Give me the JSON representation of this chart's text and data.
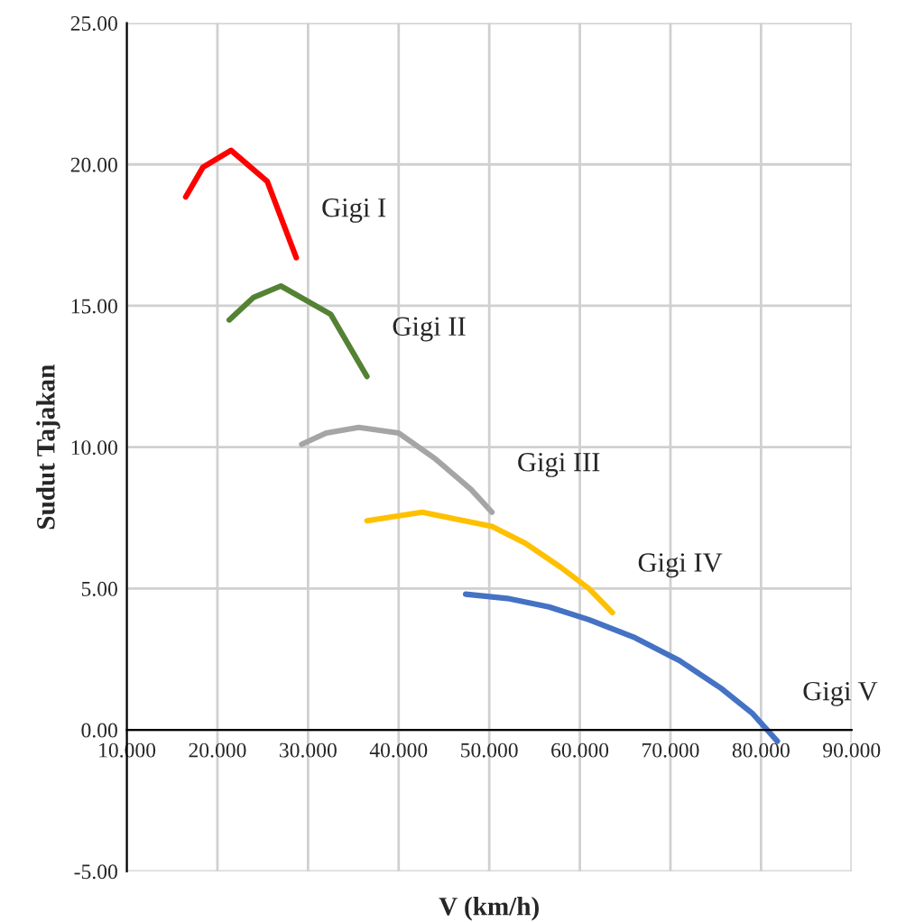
{
  "chart_data": {
    "type": "line",
    "xlabel": "V (km/h)",
    "ylabel": "Sudut Tajakan",
    "xlim": [
      10,
      90
    ],
    "ylim": [
      -5,
      25
    ],
    "xticks": [
      {
        "value": 10,
        "label": "10.000"
      },
      {
        "value": 20,
        "label": "20.000"
      },
      {
        "value": 30,
        "label": "30.000"
      },
      {
        "value": 40,
        "label": "40.000"
      },
      {
        "value": 50,
        "label": "50.000"
      },
      {
        "value": 60,
        "label": "60.000"
      },
      {
        "value": 70,
        "label": "70.000"
      },
      {
        "value": 80,
        "label": "80.000"
      },
      {
        "value": 90,
        "label": "90.000"
      }
    ],
    "yticks": [
      {
        "value": -5,
        "label": "-5.00"
      },
      {
        "value": 0,
        "label": "0.00"
      },
      {
        "value": 5,
        "label": "5.00"
      },
      {
        "value": 10,
        "label": "10.00"
      },
      {
        "value": 15,
        "label": "15.00"
      },
      {
        "value": 20,
        "label": "20.00"
      },
      {
        "value": 25,
        "label": "25.00"
      }
    ],
    "grid": true,
    "marker": "none",
    "line_style": "solid",
    "series": [
      {
        "name": "Gigi I",
        "color": "#ff0000",
        "x": [
          16.5,
          18.4,
          21.5,
          25.5,
          28.7
        ],
        "values": [
          18.85,
          19.9,
          20.5,
          19.4,
          16.7
        ]
      },
      {
        "name": "Gigi II",
        "color": "#548235",
        "x": [
          21.3,
          24.0,
          27.0,
          32.5,
          36.5
        ],
        "values": [
          14.5,
          15.3,
          15.7,
          14.7,
          12.5
        ]
      },
      {
        "name": "Gigi III",
        "color": "#a5a5a5",
        "x": [
          29.3,
          32.0,
          35.6,
          40.0,
          44.0,
          48.0,
          50.3
        ],
        "values": [
          10.1,
          10.5,
          10.7,
          10.5,
          9.6,
          8.5,
          7.7
        ]
      },
      {
        "name": "Gigi IV",
        "color": "#ffc000",
        "x": [
          36.5,
          42.6,
          50.3,
          54.0,
          57.9,
          61.0,
          63.6
        ],
        "values": [
          7.4,
          7.7,
          7.2,
          6.6,
          5.75,
          5.0,
          4.15
        ]
      },
      {
        "name": "Gigi V",
        "color": "#4472c4",
        "x": [
          47.4,
          52.0,
          56.6,
          61.0,
          66.1,
          71.0,
          75.6,
          79.0,
          81.8
        ],
        "values": [
          4.8,
          4.65,
          4.35,
          3.9,
          3.26,
          2.45,
          1.47,
          0.6,
          -0.4
        ]
      }
    ]
  }
}
